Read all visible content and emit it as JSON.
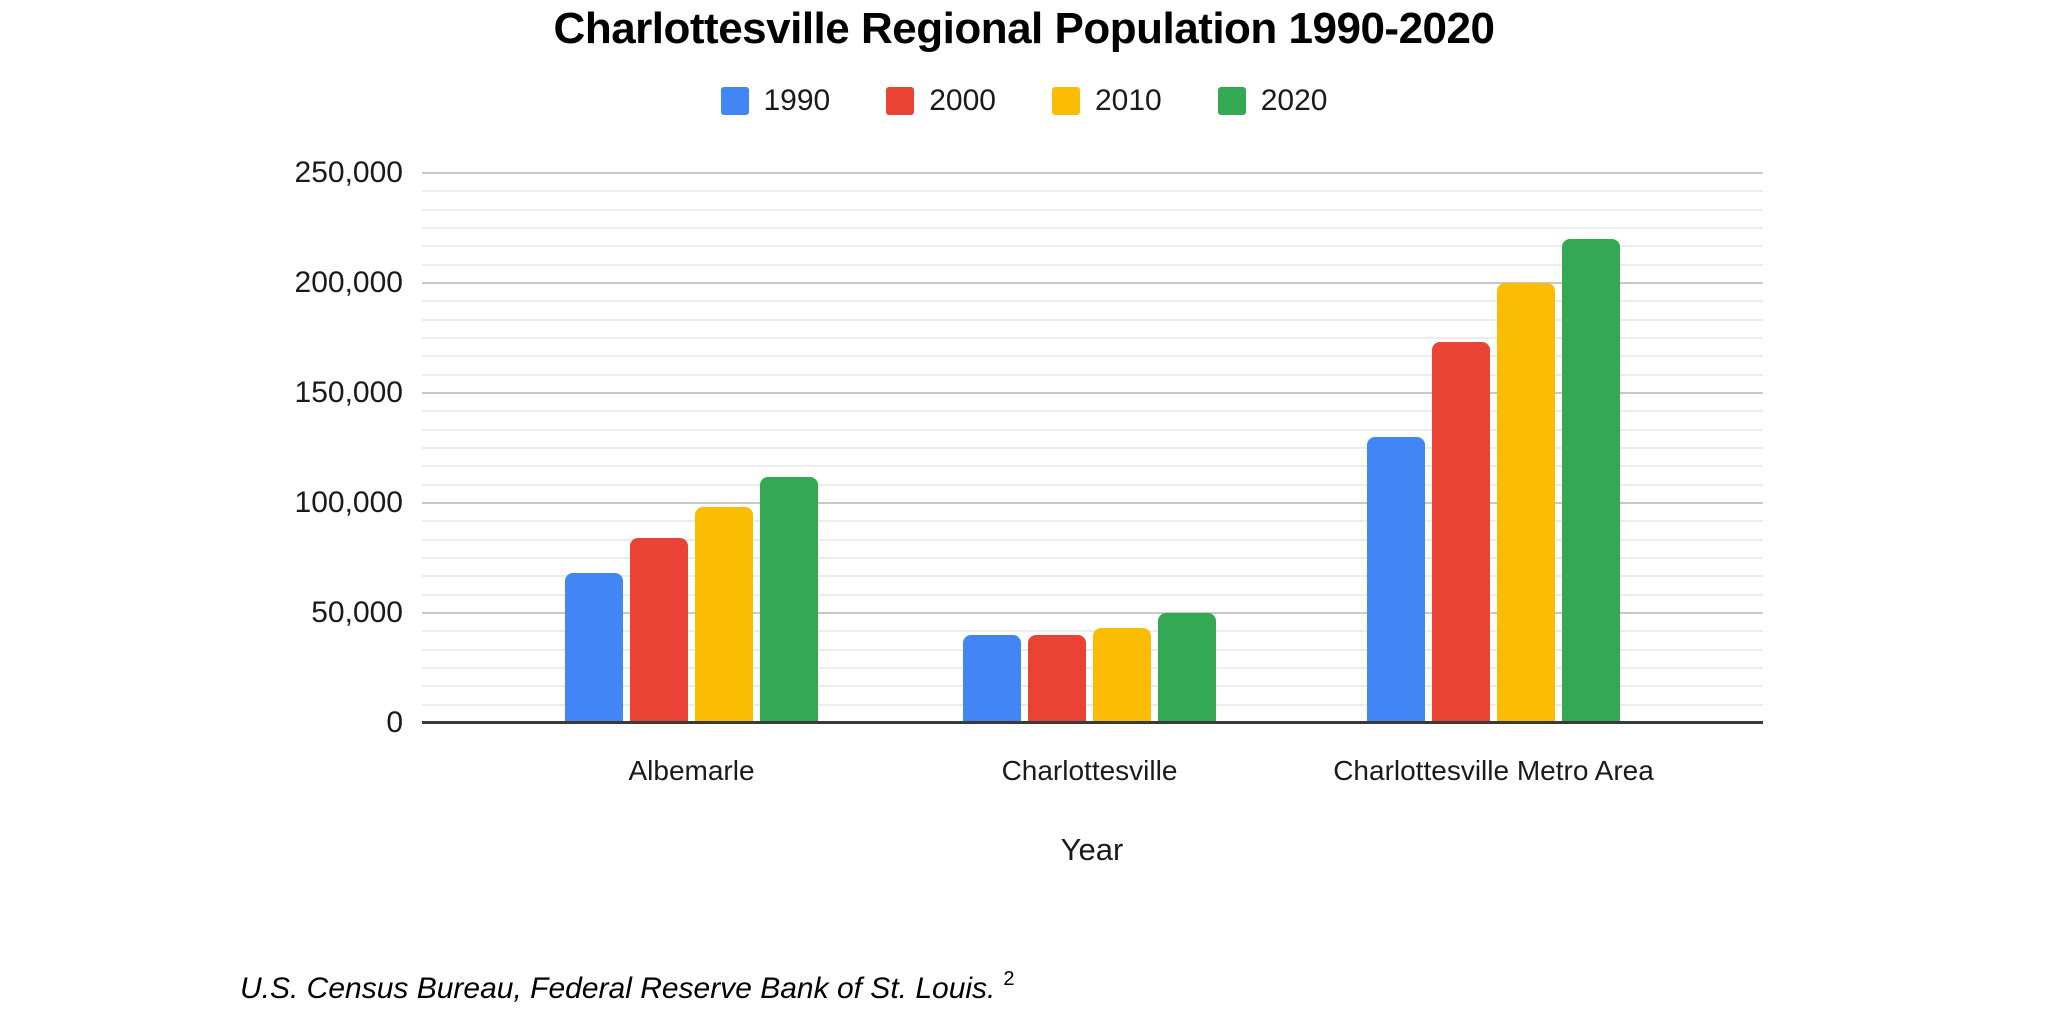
{
  "title": "Charlottesville Regional Population 1990-2020",
  "chart_data": {
    "type": "bar",
    "title": "Charlottesville Regional Population 1990-2020",
    "categories": [
      "Albemarle",
      "Charlottesville",
      "Charlottesville Metro Area"
    ],
    "series": [
      {
        "name": "1990",
        "color": "#4285F4",
        "values": [
          68000,
          40000,
          130000
        ]
      },
      {
        "name": "2000",
        "color": "#EA4335",
        "values": [
          84000,
          40000,
          173000
        ]
      },
      {
        "name": "2010",
        "color": "#FBBC04",
        "values": [
          98000,
          43000,
          200000
        ]
      },
      {
        "name": "2020",
        "color": "#34A853",
        "values": [
          112000,
          50000,
          220000
        ]
      }
    ],
    "xlabel": "Year",
    "ylabel": "",
    "ylim": [
      0,
      250000
    ],
    "ytick_interval": 50000,
    "ytick_labels": [
      "0",
      "50,000",
      "100,000",
      "150,000",
      "200,000",
      "250,000"
    ],
    "minor_gridlines_between_majors": 5,
    "grid": true,
    "legend_position": "top"
  },
  "source_note": {
    "text": "U.S. Census Bureau, Federal Reserve Bank of St. Louis.",
    "superscript": "2"
  },
  "colors": {
    "background": "#ffffff",
    "minor_gridline": "#ececec",
    "major_gridline": "#c8c8c8",
    "axis_line": "#3a3a3a",
    "text": "#1a1a1a"
  }
}
